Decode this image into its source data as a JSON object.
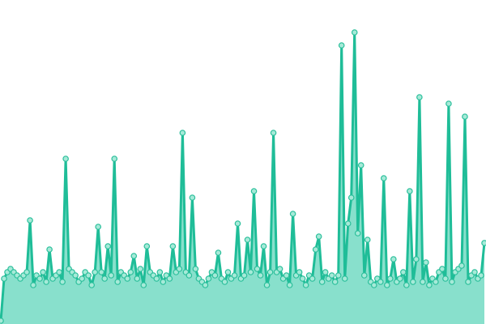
{
  "chart_data": {
    "type": "area",
    "title": "",
    "xlabel": "",
    "ylabel": "",
    "ylim": [
      0,
      100
    ],
    "grid": false,
    "legend": "none",
    "colors": {
      "line": "#1fbd98",
      "fill": "#88e0cc",
      "marker_fill": "#a6ead8",
      "marker_stroke": "#2bbf9b"
    },
    "series": [
      {
        "values": [
          1,
          14,
          16,
          17,
          16,
          15,
          14,
          15,
          16,
          32,
          12,
          15,
          14,
          16,
          13,
          23,
          14,
          15,
          16,
          13,
          51,
          17,
          16,
          15,
          13,
          14,
          16,
          15,
          12,
          16,
          30,
          16,
          14,
          24,
          15,
          51,
          13,
          16,
          15,
          14,
          16,
          21,
          14,
          17,
          12,
          24,
          16,
          15,
          14,
          16,
          13,
          15,
          14,
          24,
          16,
          17,
          59,
          16,
          15,
          39,
          17,
          14,
          13,
          12,
          14,
          16,
          15,
          22,
          14,
          13,
          16,
          14,
          15,
          31,
          14,
          15,
          26,
          16,
          41,
          17,
          15,
          24,
          12,
          16,
          59,
          16,
          17,
          14,
          15,
          12,
          34,
          15,
          16,
          14,
          12,
          15,
          14,
          23,
          27,
          13,
          16,
          14,
          15,
          13,
          15,
          86,
          14,
          31,
          39,
          90,
          28,
          49,
          15,
          26,
          13,
          12,
          14,
          13,
          45,
          12,
          14,
          20,
          13,
          14,
          16,
          12,
          41,
          13,
          20,
          70,
          13,
          19,
          12,
          14,
          13,
          16,
          17,
          14,
          68,
          13,
          16,
          17,
          18,
          64,
          13,
          15,
          16,
          14,
          15,
          25
        ]
      }
    ]
  }
}
